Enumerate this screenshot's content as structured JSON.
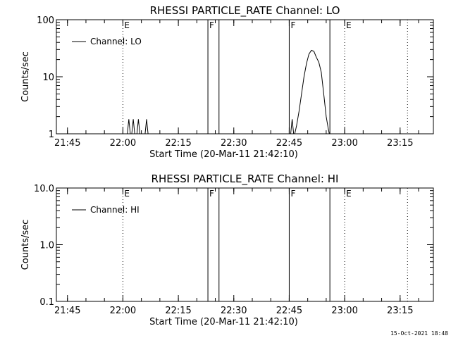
{
  "chart_data": [
    {
      "type": "line",
      "title": "RHESSI PARTICLE_RATE Channel: LO",
      "xlabel": "Start Time (20-Mar-11 21:42:10)",
      "ylabel": "Counts/sec",
      "scale_y": "log",
      "x_unit": "hh:mm",
      "xlim": [
        "21:42",
        "23:24"
      ],
      "ylim": [
        1,
        100
      ],
      "x_ticks": [
        "21:45",
        "22:00",
        "22:15",
        "22:30",
        "22:45",
        "23:00",
        "23:15"
      ],
      "y_ticks": [
        {
          "value": 1,
          "label": "1"
        },
        {
          "value": 10,
          "label": "10"
        },
        {
          "value": 100,
          "label": "100"
        }
      ],
      "legend": {
        "label": "Channel: LO",
        "position": "top-left"
      },
      "markers": [
        {
          "time": "22:00",
          "label": "E",
          "style": "dotted"
        },
        {
          "time": "22:23",
          "label": "F",
          "style": "solid"
        },
        {
          "time": "22:26",
          "label": "",
          "style": "solid"
        },
        {
          "time": "22:45",
          "label": "F",
          "style": "solid"
        },
        {
          "time": "22:56",
          "label": "",
          "style": "solid"
        },
        {
          "time": "23:00",
          "label": "E",
          "style": "dotted"
        },
        {
          "time": "23:17",
          "label": "",
          "style": "dotted"
        }
      ],
      "series": [
        {
          "segments": [
            [
              [
                "22:01:12",
                1
              ],
              [
                "22:01:36",
                1.8
              ],
              [
                "22:02:00",
                1
              ]
            ],
            [
              [
                "22:02:24",
                1
              ],
              [
                "22:02:48",
                1.8
              ],
              [
                "22:03:12",
                1
              ]
            ],
            [
              [
                "22:03:48",
                1
              ],
              [
                "22:04:12",
                1.8
              ],
              [
                "22:04:36",
                1
              ]
            ],
            [
              [
                "22:06:00",
                1
              ],
              [
                "22:06:24",
                1.8
              ],
              [
                "22:06:48",
                1
              ]
            ],
            [
              [
                "22:45:24",
                1
              ],
              [
                "22:45:48",
                1.8
              ],
              [
                "22:46:12",
                1
              ]
            ],
            [
              [
                "22:46:30",
                1
              ],
              [
                "22:47:00",
                1.4
              ],
              [
                "22:47:40",
                2.5
              ],
              [
                "22:48:20",
                5
              ],
              [
                "22:49:00",
                10
              ],
              [
                "22:49:40",
                17
              ],
              [
                "22:50:20",
                25
              ],
              [
                "22:51:00",
                29
              ],
              [
                "22:51:40",
                28
              ],
              [
                "22:52:20",
                22
              ],
              [
                "22:53:00",
                18
              ],
              [
                "22:53:40",
                12
              ],
              [
                "22:54:20",
                5
              ],
              [
                "22:55:00",
                2
              ],
              [
                "22:55:30",
                1.3
              ],
              [
                "22:55:50",
                1
              ]
            ]
          ]
        }
      ]
    },
    {
      "type": "line",
      "title": "RHESSI PARTICLE_RATE Channel: HI",
      "xlabel": "Start Time (20-Mar-11 21:42:10)",
      "ylabel": "Counts/sec",
      "scale_y": "log",
      "x_unit": "hh:mm",
      "xlim": [
        "21:42",
        "23:24"
      ],
      "ylim": [
        0.1,
        10
      ],
      "x_ticks": [
        "21:45",
        "22:00",
        "22:15",
        "22:30",
        "22:45",
        "23:00",
        "23:15"
      ],
      "y_ticks": [
        {
          "value": 0.1,
          "label": "0.1"
        },
        {
          "value": 1,
          "label": "1.0"
        },
        {
          "value": 10,
          "label": "10.0"
        }
      ],
      "legend": {
        "label": "Channel: HI",
        "position": "top-left"
      },
      "markers": [
        {
          "time": "22:00",
          "label": "E",
          "style": "dotted"
        },
        {
          "time": "22:23",
          "label": "F",
          "style": "solid"
        },
        {
          "time": "22:26",
          "label": "",
          "style": "solid"
        },
        {
          "time": "22:45",
          "label": "F",
          "style": "solid"
        },
        {
          "time": "22:56",
          "label": "",
          "style": "solid"
        },
        {
          "time": "23:00",
          "label": "E",
          "style": "dotted"
        },
        {
          "time": "23:17",
          "label": "",
          "style": "dotted"
        }
      ],
      "series": [
        {
          "segments": []
        }
      ]
    }
  ],
  "footer": {
    "timestamp": "15-Oct-2021 18:48"
  }
}
